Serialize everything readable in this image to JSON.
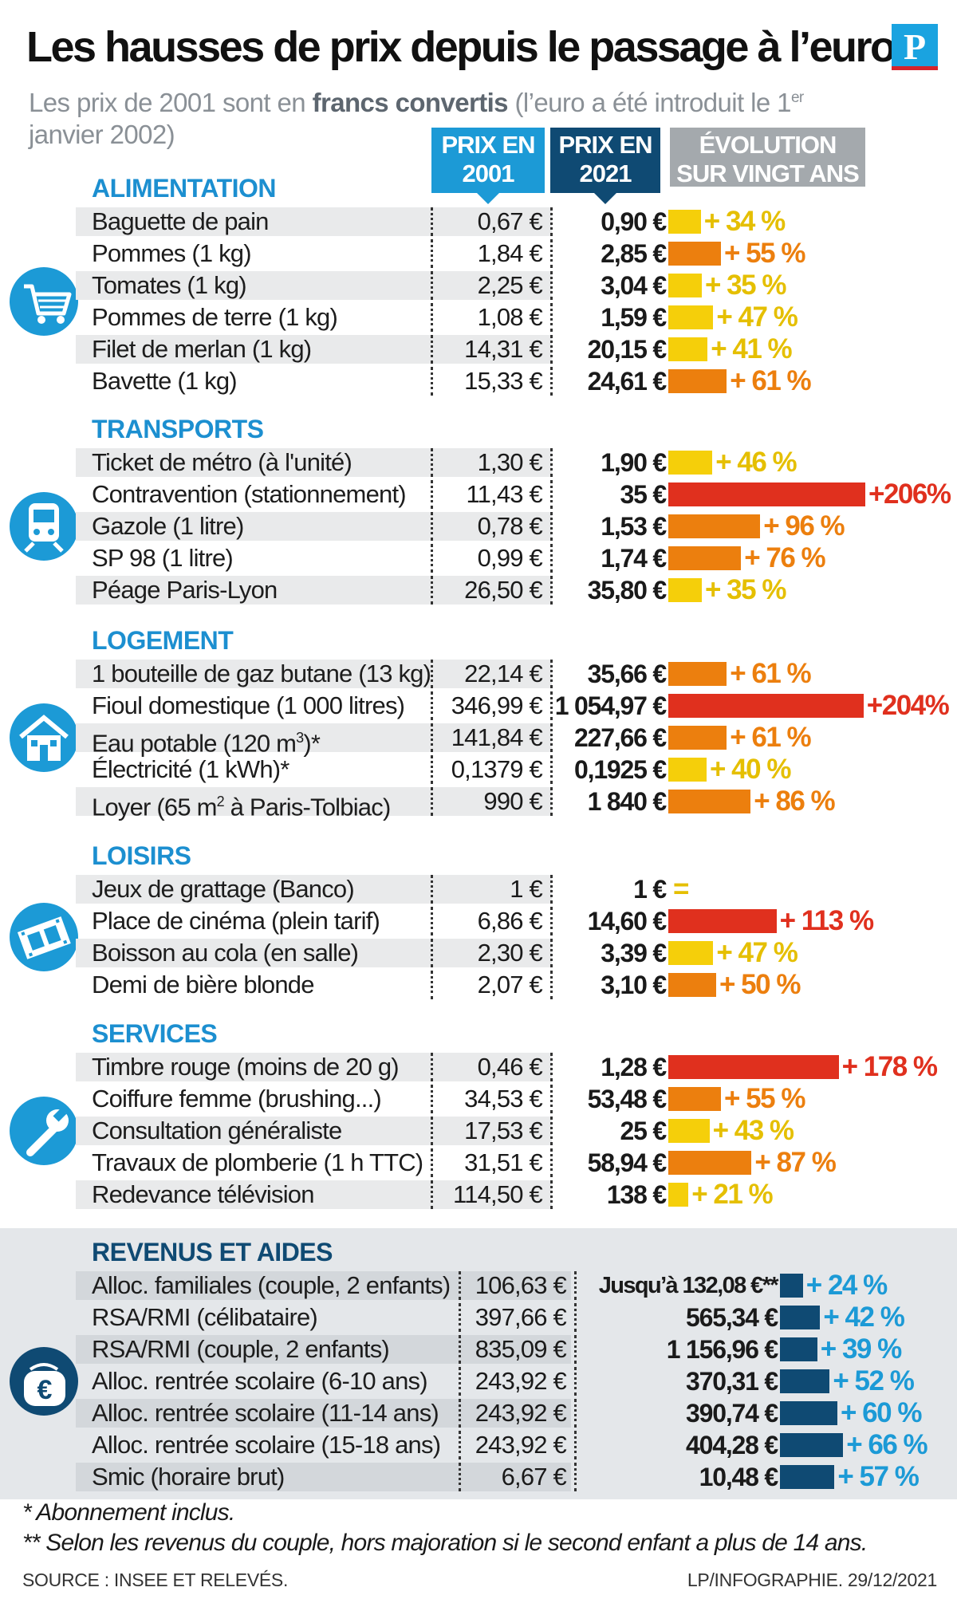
{
  "header": {
    "title": "Les hausses de prix depuis le passage à l’euro",
    "logo": "P",
    "subtitle_a": "Les prix de 2001 sont en ",
    "subtitle_b": "francs convertis",
    "subtitle_c": " (l’euro a été introduit le 1",
    "subtitle_sup": "er",
    "subtitle_d": " janvier 2002)"
  },
  "columns": {
    "prix_2001_l1": "PRIX EN",
    "prix_2001_l2": "2001",
    "prix_2021_l1": "PRIX EN",
    "prix_2021_l2": "2021",
    "evolution_l1": "ÉVOLUTION",
    "evolution_l2": "SUR VINGT ANS"
  },
  "colors": {
    "yellow": "#f5cf0a",
    "orange": "#ec7f0e",
    "red": "#e0301e",
    "dark_blue": "#0f4a73",
    "light_blue": "#1c9ad6"
  },
  "chart_data": {
    "type": "table",
    "unit": "€",
    "sections": [
      {
        "name": "ALIMENTATION",
        "icon": "shopping-cart-icon",
        "rows": [
          {
            "label": "Baguette de pain",
            "price_2001": "0,67 €",
            "price_2021": "0,90 €",
            "change": "+ 34 %",
            "value": 34
          },
          {
            "label": "Pommes (1 kg)",
            "price_2001": "1,84 €",
            "price_2021": "2,85 €",
            "change": "+ 55 %",
            "value": 55
          },
          {
            "label": "Tomates (1 kg)",
            "price_2001": "2,25 €",
            "price_2021": "3,04 €",
            "change": "+ 35 %",
            "value": 35
          },
          {
            "label": "Pommes de terre (1 kg)",
            "price_2001": "1,08 €",
            "price_2021": "1,59 €",
            "change": "+ 47 %",
            "value": 47
          },
          {
            "label": "Filet de merlan (1 kg)",
            "price_2001": "14,31 €",
            "price_2021": "20,15 €",
            "change": "+ 41 %",
            "value": 41
          },
          {
            "label": "Bavette (1 kg)",
            "price_2001": "15,33 €",
            "price_2021": "24,61 €",
            "change": "+ 61 %",
            "value": 61
          }
        ]
      },
      {
        "name": "TRANSPORTS",
        "icon": "train-icon",
        "rows": [
          {
            "label": "Ticket de métro (à l'unité)",
            "price_2001": "1,30 €",
            "price_2021": "1,90 €",
            "change": "+ 46 %",
            "value": 46
          },
          {
            "label": "Contravention (stationnement)",
            "price_2001": "11,43 €",
            "price_2021": "35 €",
            "change": "+206%",
            "value": 206
          },
          {
            "label": "Gazole (1 litre)",
            "price_2001": "0,78 €",
            "price_2021": "1,53 €",
            "change": "+ 96 %",
            "value": 96
          },
          {
            "label": "SP 98 (1 litre)",
            "price_2001": "0,99 €",
            "price_2021": "1,74 €",
            "change": "+ 76 %",
            "value": 76
          },
          {
            "label": "Péage Paris-Lyon",
            "price_2001": "26,50 €",
            "price_2021": "35,80 €",
            "change": "+ 35 %",
            "value": 35
          }
        ]
      },
      {
        "name": "LOGEMENT",
        "icon": "house-icon",
        "rows": [
          {
            "label": "1 bouteille de gaz butane (13 kg)",
            "price_2001": "22,14 €",
            "price_2021": "35,66 €",
            "change": "+ 61 %",
            "value": 61
          },
          {
            "label": "Fioul domestique (1 000 litres)",
            "price_2001": "346,99 €",
            "price_2021": "1 054,97 €",
            "change": "+204%",
            "value": 204
          },
          {
            "label": "Eau potable (120 m",
            "sup": "3",
            "label_after": ")*",
            "price_2001": "141,84 €",
            "price_2021": "227,66 €",
            "change": "+ 61 %",
            "value": 61
          },
          {
            "label": "Électricité (1 kWh)*",
            "price_2001": "0,1379 €",
            "price_2021": "0,1925 €",
            "change": "+ 40 %",
            "value": 40
          },
          {
            "label": "Loyer (65 m",
            "sup": "2",
            "label_after": " à Paris-Tolbiac)",
            "price_2001": "990 €",
            "price_2021": "1 840 €",
            "change": "+ 86 %",
            "value": 86
          }
        ]
      },
      {
        "name": "LOISIRS",
        "icon": "film-strip-icon",
        "rows": [
          {
            "label": "Jeux de grattage (Banco)",
            "price_2001": "1 €",
            "price_2021": "1 €",
            "change": "=",
            "value": 0
          },
          {
            "label": "Place de cinéma (plein tarif)",
            "price_2001": "6,86 €",
            "price_2021": "14,60 €",
            "change": "+ 113 %",
            "value": 113
          },
          {
            "label": "Boisson au cola (en salle)",
            "price_2001": "2,30 €",
            "price_2021": "3,39 €",
            "change": "+ 47 %",
            "value": 47
          },
          {
            "label": "Demi de bière blonde",
            "price_2001": "2,07 €",
            "price_2021": "3,10 €",
            "change": "+ 50 %",
            "value": 50
          }
        ]
      },
      {
        "name": "SERVICES",
        "icon": "wrench-icon",
        "rows": [
          {
            "label": "Timbre rouge (moins de 20 g)",
            "price_2001": "0,46 €",
            "price_2021": "1,28 €",
            "change": "+ 178 %",
            "value": 178
          },
          {
            "label": "Coiffure femme (brushing...)",
            "price_2001": "34,53 €",
            "price_2021": "53,48 €",
            "change": "+ 55 %",
            "value": 55
          },
          {
            "label": "Consultation généraliste",
            "price_2001": "17,53 €",
            "price_2021": "25 €",
            "change": "+ 43 %",
            "value": 43
          },
          {
            "label": "Travaux de plomberie (1 h TTC)",
            "price_2001": "31,51 €",
            "price_2021": "58,94 €",
            "change": "+ 87 %",
            "value": 87
          },
          {
            "label": "Redevance télévision",
            "price_2001": "114,50 €",
            "price_2021": "138 €",
            "change": "+ 21 %",
            "value": 21
          }
        ]
      },
      {
        "name": "REVENUS ET AIDES",
        "icon": "euro-purse-icon",
        "rows": [
          {
            "label": "Alloc. familiales (couple, 2 enfants)",
            "price_2001": "106,63 €",
            "price_2021": "Jusqu’à 132,08 €**",
            "change": "+ 24 %",
            "value": 24
          },
          {
            "label": "RSA/RMI (célibataire)",
            "price_2001": "397,66 €",
            "price_2021": "565,34 €",
            "change": "+ 42 %",
            "value": 42
          },
          {
            "label": "RSA/RMI (couple, 2 enfants)",
            "price_2001": "835,09 €",
            "price_2021": "1 156,96 €",
            "change": "+ 39 %",
            "value": 39
          },
          {
            "label": "Alloc. rentrée scolaire (6-10 ans)",
            "price_2001": "243,92 €",
            "price_2021": "370,31 €",
            "change": "+ 52 %",
            "value": 52
          },
          {
            "label": "Alloc. rentrée scolaire (11-14 ans)",
            "price_2001": "243,92 €",
            "price_2021": "390,74 €",
            "change": "+ 60 %",
            "value": 60
          },
          {
            "label": "Alloc. rentrée scolaire (15-18 ans)",
            "price_2001": "243,92 €",
            "price_2021": "404,28 €",
            "change": "+ 66 %",
            "value": 66
          },
          {
            "label": "Smic (horaire brut)",
            "price_2001": "6,67 €",
            "price_2021": "10,48 €",
            "change": "+ 57 %",
            "value": 57
          }
        ]
      }
    ]
  },
  "footer": {
    "note1": "* Abonnement inclus.",
    "note2": "** Selon les revenus du couple, hors majoration si le second enfant a plus de 14 ans.",
    "source": "SOURCE : INSEE ET RELEVÉS.",
    "credit": "LP/INFOGRAPHIE. 29/12/2021"
  }
}
